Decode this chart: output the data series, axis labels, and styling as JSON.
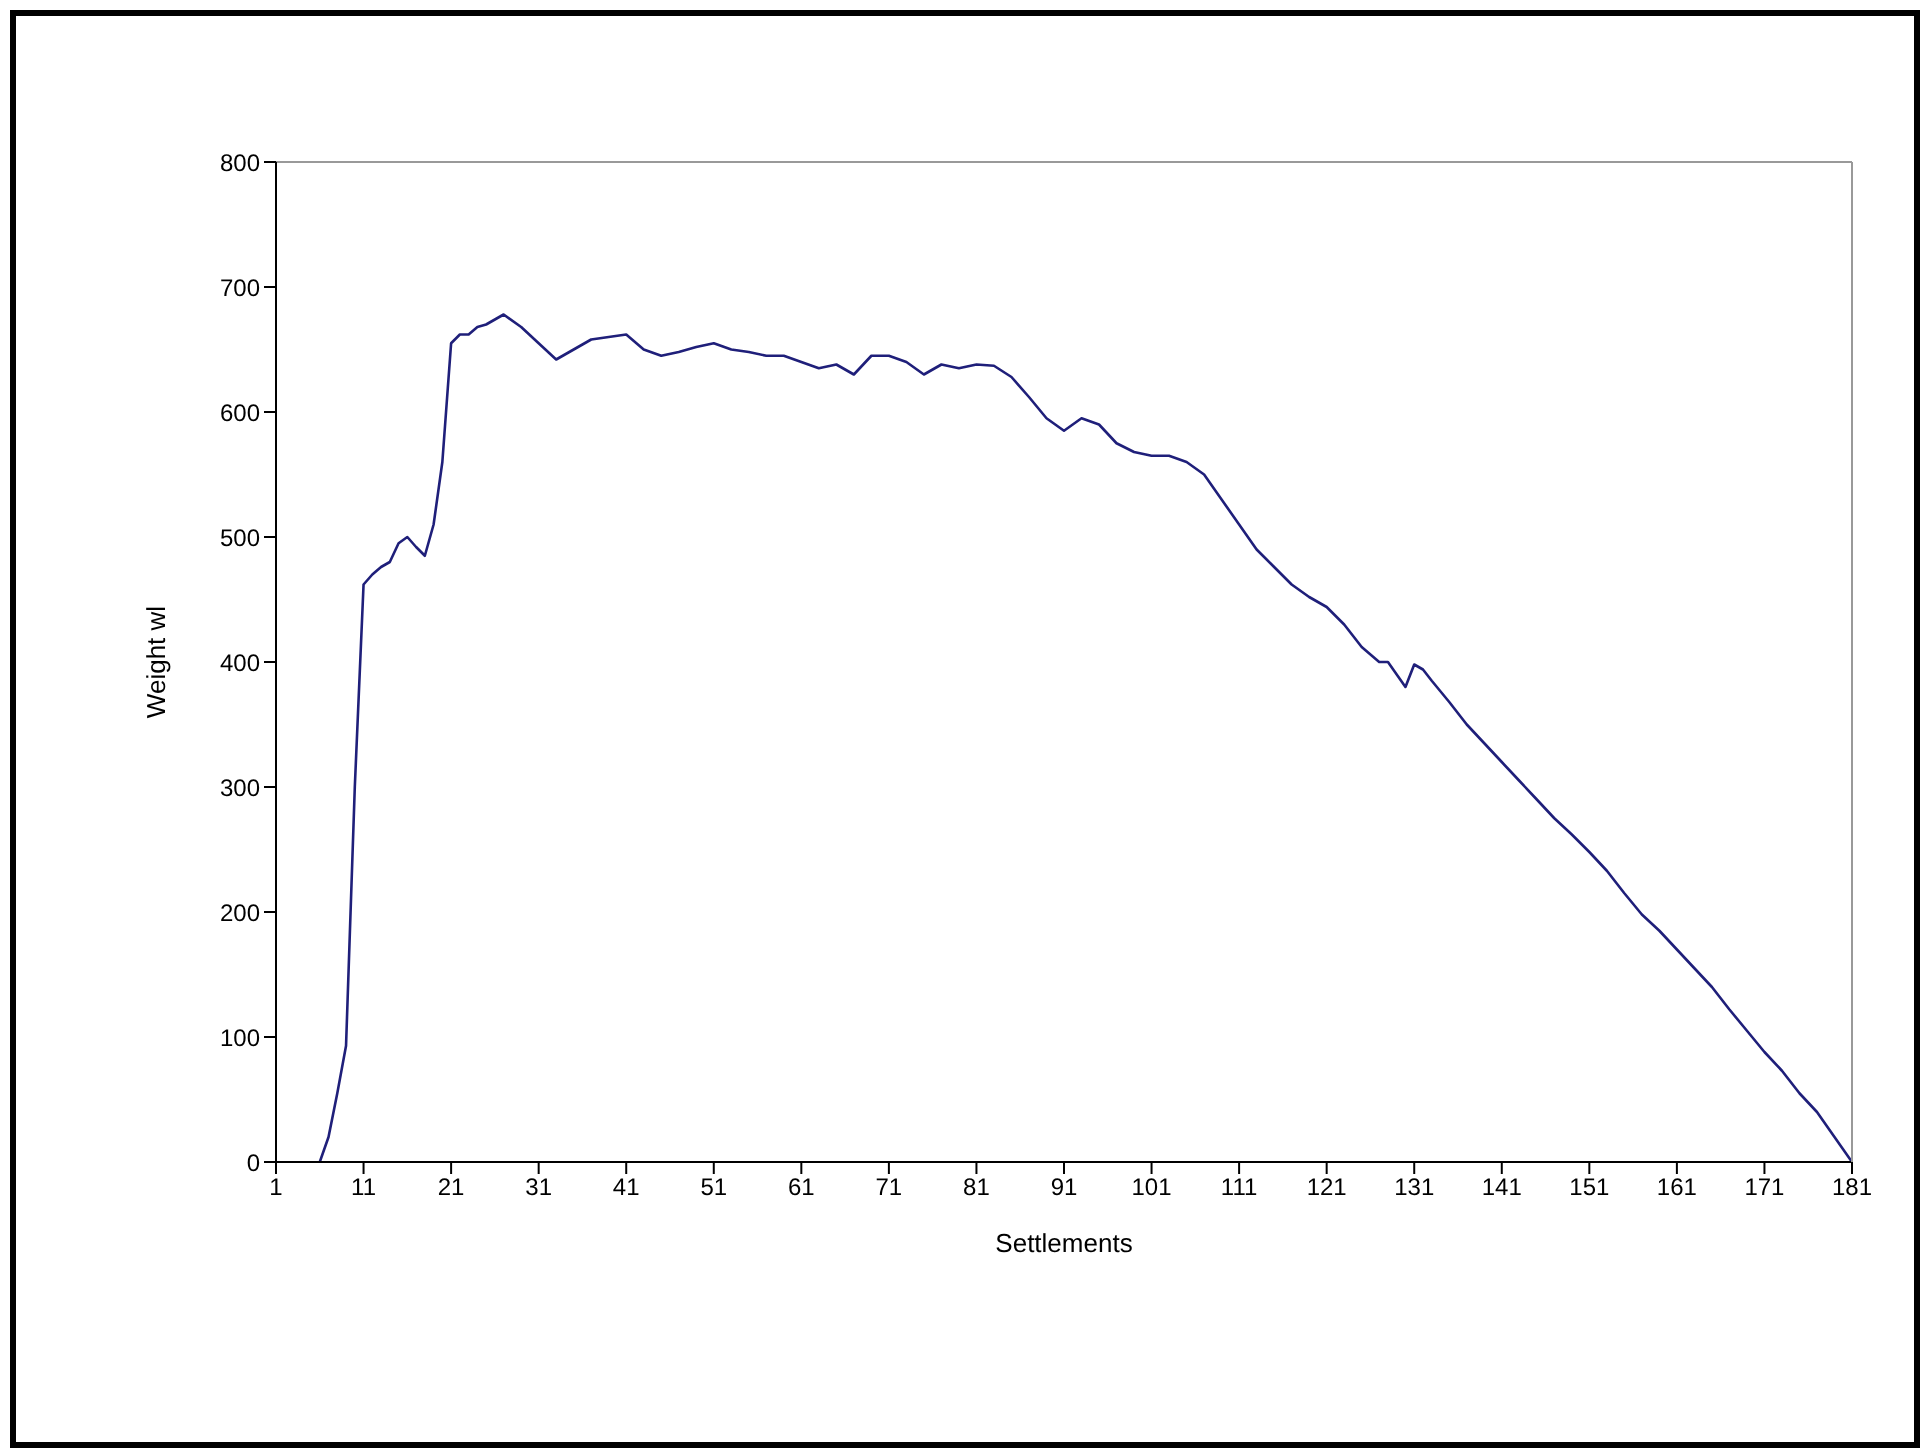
{
  "chart_data": {
    "type": "line",
    "xlabel": "Settlements",
    "ylabel": "Weight wl",
    "x": [
      6,
      7,
      8,
      9,
      10,
      11,
      12,
      13,
      14,
      15,
      16,
      17,
      18,
      19,
      20,
      21,
      22,
      23,
      24,
      25,
      27,
      29,
      31,
      33,
      35,
      37,
      39,
      41,
      43,
      45,
      47,
      49,
      51,
      53,
      55,
      57,
      59,
      61,
      63,
      65,
      67,
      69,
      71,
      73,
      75,
      77,
      79,
      81,
      83,
      85,
      87,
      89,
      91,
      93,
      95,
      97,
      99,
      101,
      103,
      105,
      107,
      109,
      111,
      113,
      115,
      117,
      119,
      121,
      123,
      125,
      127,
      128,
      129,
      130,
      131,
      132,
      133,
      135,
      137,
      139,
      141,
      143,
      145,
      147,
      149,
      151,
      153,
      155,
      157,
      159,
      161,
      163,
      165,
      167,
      169,
      171,
      173,
      175,
      177,
      179,
      181
    ],
    "series": [
      {
        "color": "#1f1f7a",
        "values": [
          0,
          20,
          55,
          93,
          300,
          462,
          470,
          476,
          480,
          495,
          500,
          492,
          485,
          510,
          560,
          655,
          662,
          662,
          668,
          670,
          678,
          668,
          655,
          642,
          650,
          658,
          660,
          662,
          650,
          645,
          648,
          652,
          655,
          650,
          648,
          645,
          645,
          640,
          635,
          638,
          630,
          645,
          645,
          640,
          630,
          638,
          635,
          638,
          637,
          628,
          612,
          595,
          585,
          595,
          590,
          575,
          568,
          565,
          565,
          560,
          550,
          530,
          510,
          490,
          476,
          462,
          452,
          444,
          430,
          412,
          400,
          400,
          390,
          380,
          398,
          394,
          385,
          368,
          350,
          335,
          320,
          305,
          290,
          275,
          262,
          248,
          233,
          215,
          198,
          185,
          170,
          155,
          140,
          122,
          105,
          88,
          73,
          55,
          40,
          20,
          0
        ]
      }
    ],
    "xlim": [
      1,
      181
    ],
    "xticks": [
      1,
      11,
      21,
      31,
      41,
      51,
      61,
      71,
      81,
      91,
      101,
      111,
      121,
      131,
      141,
      151,
      161,
      171,
      181
    ],
    "ylim": [
      0,
      800
    ],
    "yticks": [
      0,
      100,
      200,
      300,
      400,
      500,
      600,
      700,
      800
    ],
    "marker": "none",
    "line_style": "solid"
  }
}
